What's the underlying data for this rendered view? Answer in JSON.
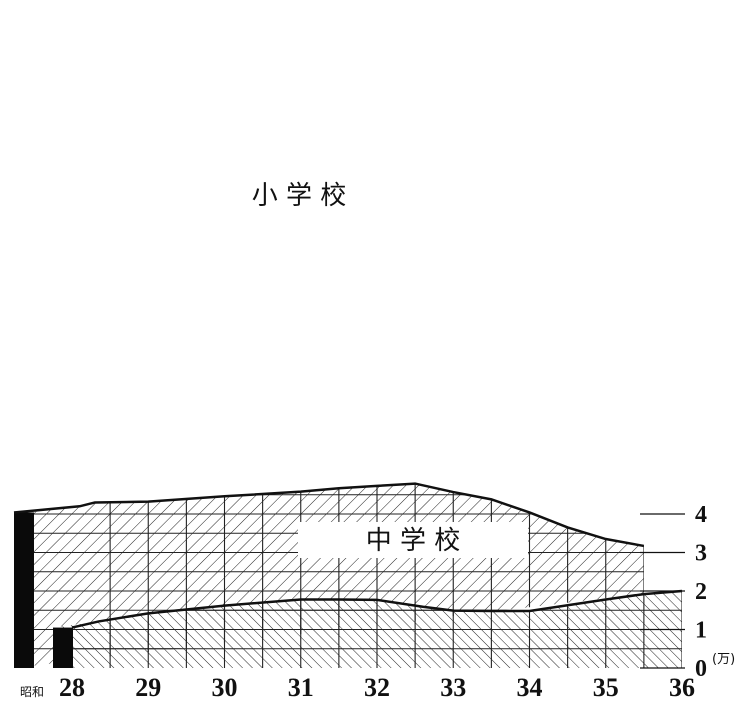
{
  "chart_data": {
    "type": "area",
    "title": "",
    "xlabel": "",
    "ylabel": "",
    "x_ticks": [
      "28",
      "29",
      "30",
      "31",
      "32",
      "33",
      "34",
      "35",
      "36"
    ],
    "x_prefix": "昭和",
    "y_ticks": [
      "0",
      "1",
      "2",
      "3",
      "4"
    ],
    "y_unit": "(万)",
    "ylim": [
      0,
      4.8
    ],
    "xlim": [
      27.6,
      36.0
    ],
    "series": [
      {
        "name": "中 学 校",
        "x": [
          28.0,
          28.35,
          29.0,
          30.0,
          31.0,
          31.5,
          32.0,
          32.6,
          33.0,
          33.5,
          34.0,
          34.5,
          35.0,
          35.5,
          36.0
        ],
        "values": [
          1.05,
          1.21,
          1.42,
          1.62,
          1.78,
          1.78,
          1.77,
          1.59,
          1.49,
          1.48,
          1.48,
          1.63,
          1.78,
          1.92,
          2.0
        ]
      },
      {
        "name": "小 学 校",
        "x": [
          27.6,
          28.1,
          28.3,
          29.0,
          30.0,
          31.0,
          31.5,
          32.0,
          32.5,
          33.0,
          33.5,
          34.0,
          34.5,
          35.0,
          35.5
        ],
        "values": [
          4.04,
          4.2,
          4.3,
          4.32,
          4.46,
          4.58,
          4.67,
          4.73,
          4.79,
          4.57,
          4.38,
          4.04,
          3.65,
          3.35,
          3.17
        ]
      }
    ]
  }
}
